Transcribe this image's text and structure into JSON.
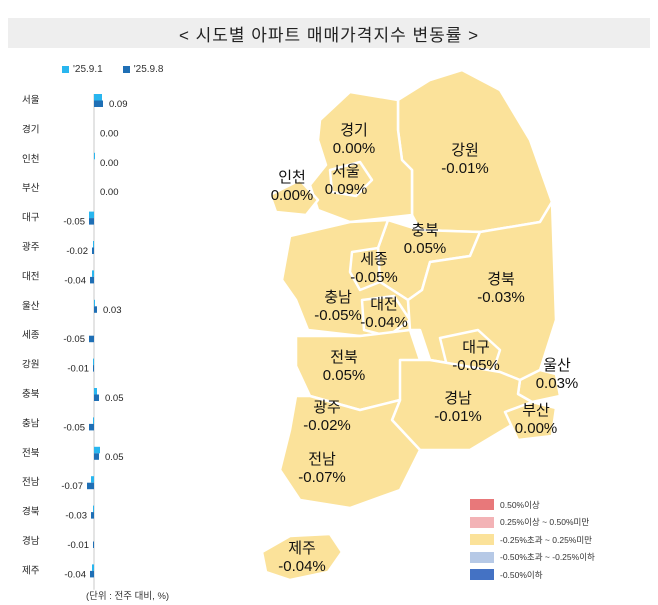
{
  "title": "< 시도별 아파트 매매가격지수 변동률 >",
  "unit_note": "(단위 : 전주 대비, %)",
  "colors": {
    "series1": "#29b6ef",
    "series2": "#1f6fb5",
    "map_fill": "#fbe29a",
    "map_stroke": "#ffffff",
    "map_outline": "#e8cc7a"
  },
  "chart_data": {
    "type": "bar",
    "orientation": "horizontal",
    "categories": [
      "서울",
      "경기",
      "인천",
      "부산",
      "대구",
      "광주",
      "대전",
      "울산",
      "세종",
      "강원",
      "충북",
      "충남",
      "전북",
      "전남",
      "경북",
      "경남",
      "제주"
    ],
    "series": [
      {
        "name": "'25.9.1",
        "values": [
          0.08,
          0.0,
          0.01,
          0.0,
          -0.05,
          -0.01,
          -0.02,
          0.01,
          0.0,
          -0.01,
          0.03,
          -0.01,
          0.06,
          -0.03,
          -0.01,
          0.0,
          -0.02
        ]
      },
      {
        "name": "'25.9.8",
        "values": [
          0.09,
          0.0,
          0.0,
          0.0,
          -0.05,
          -0.02,
          -0.04,
          0.03,
          -0.05,
          -0.01,
          0.05,
          -0.05,
          0.05,
          -0.07,
          -0.03,
          -0.01,
          -0.04
        ]
      }
    ],
    "labels": [
      "0.09",
      "0.00",
      "0.00",
      "0.00",
      "-0.05",
      "-0.02",
      "-0.04",
      "0.03",
      "-0.05",
      "-0.01",
      "0.05",
      "-0.05",
      "0.05",
      "-0.07",
      "-0.03",
      "-0.01",
      "-0.04"
    ],
    "xlim": [
      -0.09,
      0.09
    ]
  },
  "map": {
    "regions": [
      {
        "name": "경기",
        "value": "0.00%"
      },
      {
        "name": "강원",
        "value": "-0.01%"
      },
      {
        "name": "인천",
        "value": "0.00%"
      },
      {
        "name": "서울",
        "value": "0.09%"
      },
      {
        "name": "충북",
        "value": "0.05%"
      },
      {
        "name": "세종",
        "value": "-0.05%"
      },
      {
        "name": "경북",
        "value": "-0.03%"
      },
      {
        "name": "충남",
        "value": "-0.05%"
      },
      {
        "name": "대전",
        "value": "-0.04%"
      },
      {
        "name": "대구",
        "value": "-0.05%"
      },
      {
        "name": "울산",
        "value": "0.03%"
      },
      {
        "name": "전북",
        "value": "0.05%"
      },
      {
        "name": "경남",
        "value": "-0.01%"
      },
      {
        "name": "광주",
        "value": "-0.02%"
      },
      {
        "name": "부산",
        "value": "0.00%"
      },
      {
        "name": "전남",
        "value": "-0.07%"
      },
      {
        "name": "제주",
        "value": "-0.04%"
      }
    ],
    "legend": [
      {
        "label": "0.50%이상",
        "color": "#e8787a"
      },
      {
        "label": "0.25%이상 ~ 0.50%미만",
        "color": "#f3b3b6"
      },
      {
        "label": "-0.25%초과 ~ 0.25%미만",
        "color": "#fbe29a"
      },
      {
        "label": "-0.50%초과 ~ -0.25%이하",
        "color": "#b6c9e6"
      },
      {
        "label": "-0.50%이하",
        "color": "#4472c4"
      }
    ]
  }
}
